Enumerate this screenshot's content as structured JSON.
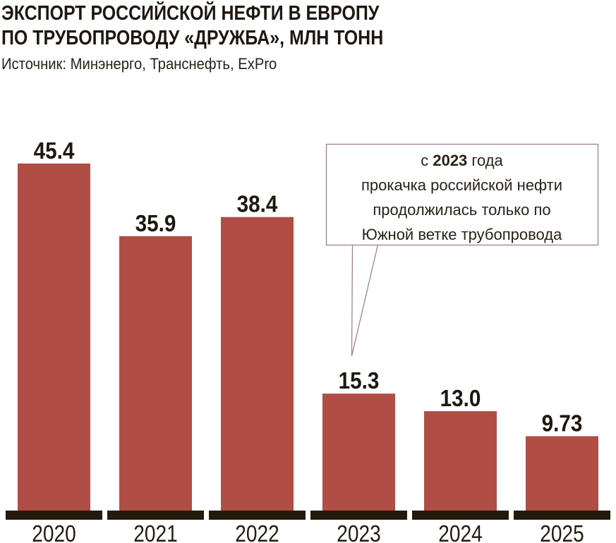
{
  "chart_data": {
    "type": "bar",
    "title_lines": [
      "ЭКСПОРТ РОССИЙСКОЙ НЕФТИ В ЕВРОПУ",
      "ПО ТРУБОПРОВОДУ «ДРУЖБА», МЛН ТОНН"
    ],
    "subtitle": "Источник: Минэнерго, Транснефть, ExPro",
    "categories": [
      "2020",
      "2021",
      "2022",
      "2023",
      "2024",
      "2025"
    ],
    "values": [
      45.4,
      35.9,
      38.4,
      15.3,
      13.0,
      9.73
    ],
    "value_labels": [
      "45.4",
      "35.9",
      "38.4",
      "15.3",
      "13.0",
      "9.73"
    ],
    "xlabel": "",
    "ylabel": "",
    "ylim": [
      0,
      50
    ],
    "grid": false,
    "bar_color": "#b04d45",
    "axis_color": "#231a0c",
    "annotation": {
      "target_category": "2023",
      "prefix": "с ",
      "bold": "2023",
      "suffix": " года",
      "lines": [
        "прокачка российской нефти",
        "продолжилась только по",
        "Южной ветке трубопровода"
      ],
      "border_color": "#a08388"
    }
  }
}
